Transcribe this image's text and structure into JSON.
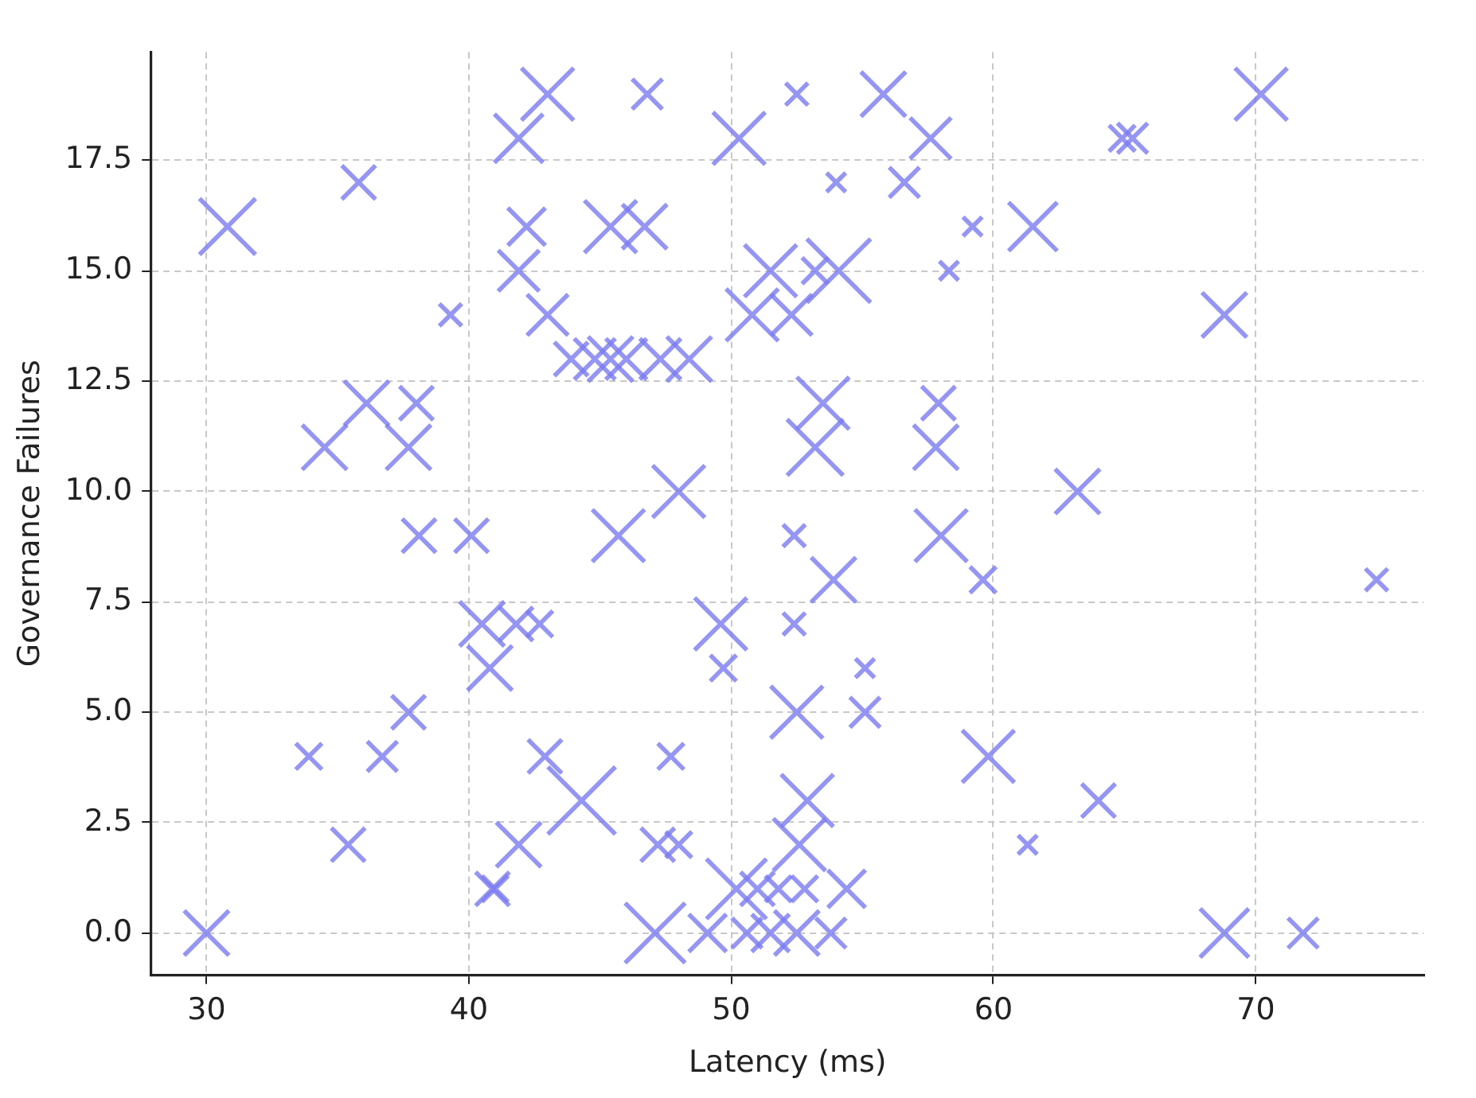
{
  "chart_data": {
    "type": "bubble",
    "xlabel": "Latency (ms)",
    "ylabel": "Governance Failures",
    "marker": "cross",
    "grid": true,
    "xlim": [
      27.9,
      76.4
    ],
    "ylim": [
      -0.94,
      19.95
    ],
    "xticks": [
      30,
      40,
      50,
      60,
      70
    ],
    "yticks": [
      {
        "value": 0,
        "label": "0.0"
      },
      {
        "value": 2.5,
        "label": "2.5"
      },
      {
        "value": 5,
        "label": "5.0"
      },
      {
        "value": 7.5,
        "label": "7.5"
      },
      {
        "value": 10,
        "label": "10.0"
      },
      {
        "value": 12.5,
        "label": "12.5"
      },
      {
        "value": 15,
        "label": "15.0"
      },
      {
        "value": 17.5,
        "label": "17.5"
      }
    ],
    "series": [
      {
        "color": "#7b7bf0",
        "x": [
          30.8,
          35.8,
          30.0,
          33.9,
          35.4,
          36.7,
          37.7,
          34.5,
          36.1,
          37.7,
          38.0,
          39.3,
          38.1,
          40.1,
          40.5,
          40.8,
          41.8,
          42.7,
          40.9,
          41.9,
          41.0,
          42.9,
          44.3,
          47.7,
          47.2,
          48.0,
          47.1,
          49.1,
          50.2,
          50.6,
          51.0,
          51.5,
          51.8,
          52.5,
          52.8,
          53.8,
          54.4,
          52.6,
          52.9,
          52.5,
          55.1,
          55.1,
          52.4,
          53.9,
          52.4,
          49.6,
          49.7,
          45.7,
          48.0,
          53.2,
          53.5,
          57.8,
          57.9,
          58.0,
          59.6,
          63.2,
          59.8,
          61.3,
          64.0,
          68.8,
          71.8,
          74.6,
          68.8,
          70.2,
          61.5,
          65.3,
          64.9,
          58.3,
          59.2,
          56.6,
          57.6,
          55.8,
          52.5,
          54.0,
          54.1,
          53.2,
          52.3,
          50.8,
          51.5,
          50.3,
          46.8,
          43.0,
          41.9,
          42.2,
          45.4,
          46.7,
          41.9,
          43.0,
          43.9,
          44.8,
          45.4,
          46.0,
          47.3,
          48.4
        ],
        "values": [
          16,
          17,
          0,
          4,
          2,
          4,
          5,
          11,
          12,
          11,
          12,
          14,
          9,
          9,
          7,
          6,
          7,
          7,
          1,
          2,
          1,
          4,
          3,
          4,
          2,
          2,
          0,
          0,
          1,
          0,
          1,
          0,
          1,
          0,
          1,
          0,
          1,
          2,
          3,
          5,
          5,
          6,
          7,
          8,
          9,
          7,
          6,
          9,
          10,
          11,
          12,
          11,
          12,
          9,
          8,
          10,
          4,
          2,
          3,
          0,
          0,
          8,
          14,
          19,
          16,
          18,
          18,
          15,
          16,
          17,
          18,
          19,
          19,
          17,
          15,
          15,
          14,
          14,
          15,
          18,
          19,
          19,
          18,
          16,
          16,
          16,
          15,
          14,
          13,
          13,
          13,
          13,
          13,
          13
        ],
        "sizes": [
          0.69,
          0.25,
          0.44,
          0.15,
          0.25,
          0.2,
          0.25,
          0.44,
          0.44,
          0.44,
          0.25,
          0.11,
          0.25,
          0.25,
          0.44,
          0.44,
          0.25,
          0.15,
          0.25,
          0.44,
          0.15,
          0.25,
          1,
          0.15,
          0.25,
          0.15,
          0.79,
          0.31,
          0.79,
          0.2,
          0.25,
          0.31,
          0.15,
          0.44,
          0.15,
          0.2,
          0.31,
          0.6,
          0.6,
          0.6,
          0.2,
          0.08,
          0.11,
          0.44,
          0.11,
          0.6,
          0.15,
          0.6,
          0.6,
          0.69,
          0.6,
          0.44,
          0.25,
          0.6,
          0.15,
          0.44,
          0.6,
          0.08,
          0.25,
          0.52,
          0.2,
          0.11,
          0.44,
          0.6,
          0.52,
          0.2,
          0.15,
          0.08,
          0.08,
          0.2,
          0.37,
          0.44,
          0.11,
          0.08,
          0.89,
          0.15,
          0.37,
          0.6,
          0.6,
          0.6,
          0.2,
          0.6,
          0.52,
          0.31,
          0.6,
          0.44,
          0.37,
          0.37,
          0.25,
          0.37,
          0.44,
          0.37,
          0.37,
          0.44
        ]
      }
    ]
  }
}
